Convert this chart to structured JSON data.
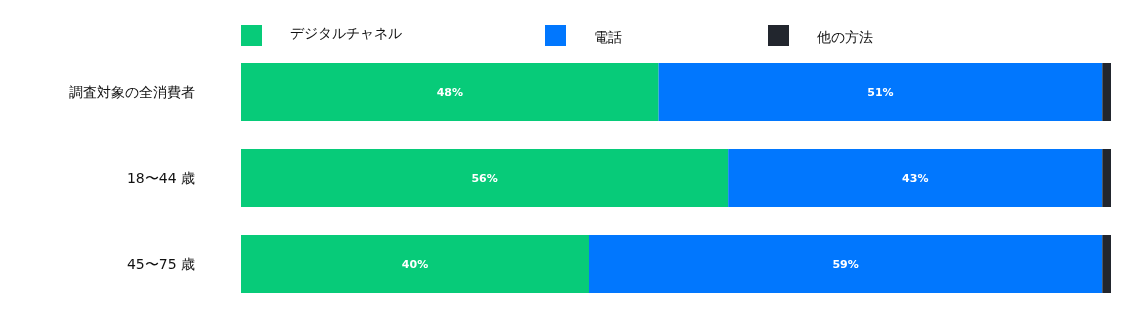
{
  "chart_data": {
    "type": "bar",
    "orientation": "horizontal",
    "stacked": true,
    "legend": "top",
    "xlim": [
      0,
      100
    ],
    "categories": [
      "調査対象の全消費者",
      "18〜44 歳",
      "45〜75 歳"
    ],
    "series": [
      {
        "name": "デジタルチャネル",
        "color": "#07cb79",
        "values": [
          48,
          56,
          40
        ],
        "value_labels": [
          "48%",
          "56%",
          "40%"
        ]
      },
      {
        "name": "電話",
        "color": "#0177fe",
        "values": [
          51,
          43,
          59
        ],
        "value_labels": [
          "51%",
          "43%",
          "59%"
        ]
      },
      {
        "name": "他の方法",
        "color": "#22262e",
        "values": [
          1,
          1,
          1
        ],
        "value_labels": [
          null,
          null,
          null
        ]
      }
    ]
  }
}
